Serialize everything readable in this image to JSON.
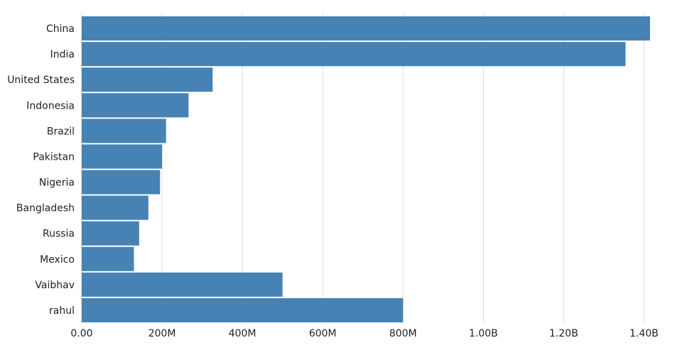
{
  "chart_data": {
    "type": "bar",
    "orientation": "horizontal",
    "categories": [
      "China",
      "India",
      "United States",
      "Indonesia",
      "Brazil",
      "Pakistan",
      "Nigeria",
      "Bangladesh",
      "Russia",
      "Mexico",
      "Vaibhav",
      "rahul"
    ],
    "values": [
      1415000000,
      1354000000,
      326000000,
      266000000,
      210000000,
      200000000,
      195000000,
      166000000,
      143000000,
      130000000,
      500000000,
      800000000
    ],
    "xlim": [
      0,
      1415000000
    ],
    "x_ticks": [
      0,
      200000000,
      400000000,
      600000000,
      800000000,
      1000000000,
      1200000000,
      1400000000
    ],
    "x_tick_labels": [
      "0.00",
      "200M",
      "400M",
      "600M",
      "800M",
      "1.00B",
      "1.20B",
      "1.40B"
    ],
    "bar_color": "#4682b4",
    "grid": true,
    "legend": "none",
    "title": "",
    "xlabel": "",
    "ylabel": ""
  }
}
